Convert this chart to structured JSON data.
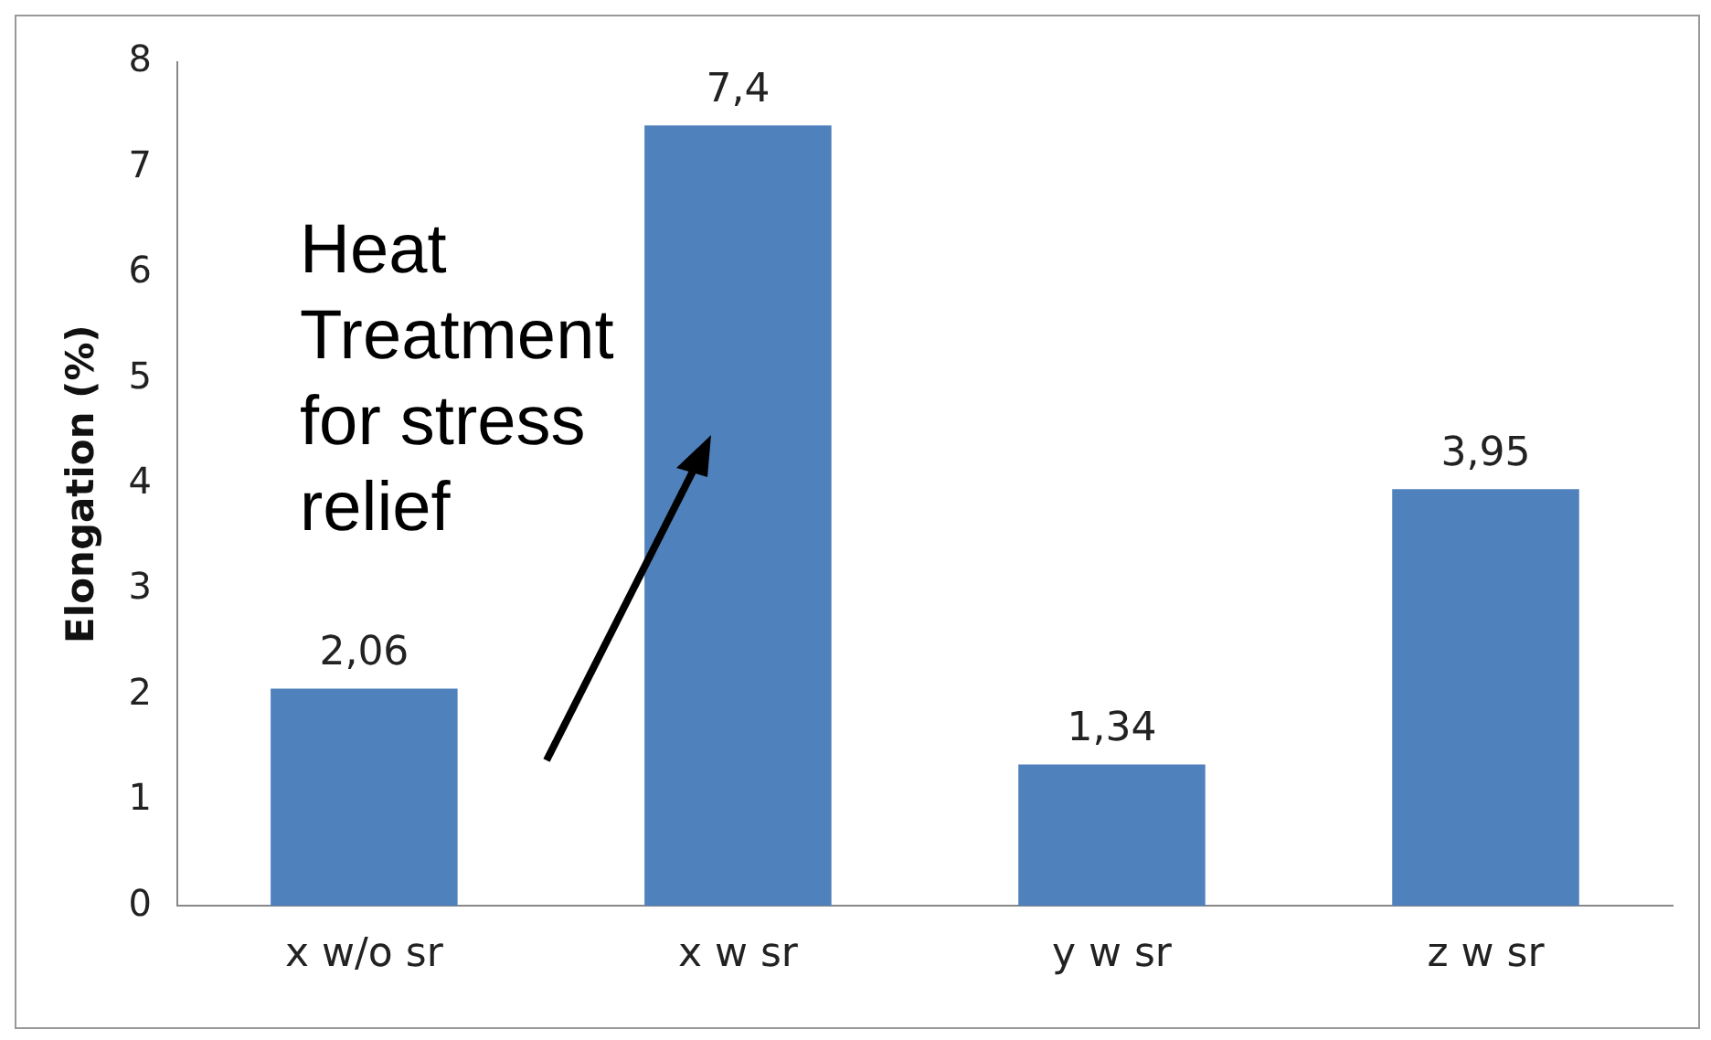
{
  "chart_data": {
    "type": "bar",
    "ylabel": "Elongation (%)",
    "categories": [
      "x w/o sr",
      "x w sr",
      "y w sr",
      "z w sr"
    ],
    "values": [
      2.06,
      7.4,
      1.34,
      3.95
    ],
    "value_labels": [
      "2,06",
      "7,4",
      "1,34",
      "3,95"
    ],
    "color": "#4f81bd",
    "ylim": [
      0,
      8
    ],
    "yticks": [
      0,
      1,
      2,
      3,
      4,
      5,
      6,
      7,
      8
    ],
    "grid": false,
    "legend": false,
    "annotations": [
      "Heat Treatment for stress relief"
    ]
  }
}
